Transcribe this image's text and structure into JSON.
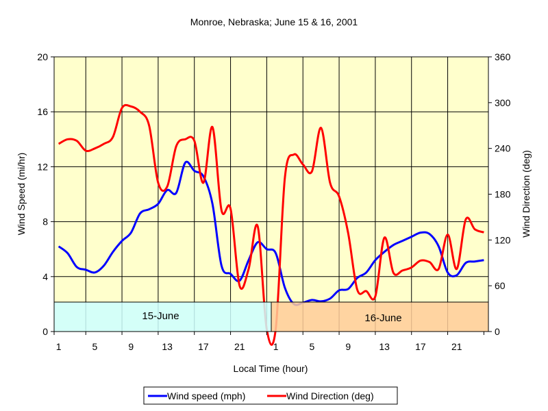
{
  "chart_data": {
    "type": "line",
    "title": "Monroe, Nebraska; June 15 & 16, 2001",
    "xlabel": "Local Time (hour)",
    "ylabel": "Wind Speed (mi/hr)",
    "y2label": "Wind Direction (deg)",
    "ylim": [
      0,
      20
    ],
    "y2lim": [
      0,
      360
    ],
    "yticks": [
      "0",
      "4",
      "8",
      "12",
      "16",
      "20"
    ],
    "y2ticks": [
      "0",
      "60",
      "120",
      "180",
      "240",
      "300",
      "360"
    ],
    "xticks": [
      "1",
      "5",
      "9",
      "13",
      "17",
      "21",
      "1",
      "5",
      "9",
      "13",
      "17",
      "21"
    ],
    "grid": true,
    "legend_position": "bottom",
    "bands": [
      {
        "label": "15-June",
        "color": "#ccffff"
      },
      {
        "label": "16-June",
        "color": "#ffcc99"
      }
    ],
    "x": [
      1,
      2,
      3,
      4,
      5,
      6,
      7,
      8,
      9,
      10,
      11,
      12,
      13,
      14,
      15,
      16,
      17,
      18,
      19,
      20,
      21,
      22,
      23,
      24,
      1,
      2,
      3,
      4,
      5,
      6,
      7,
      8,
      9,
      10,
      11,
      12,
      13,
      14,
      15,
      16,
      17,
      18,
      19,
      20,
      21,
      22,
      23,
      24
    ],
    "series": [
      {
        "name": "Wind speed (mph)",
        "axis": "left",
        "color": "#0000ff",
        "values": [
          6.2,
          5.7,
          4.7,
          4.5,
          4.3,
          4.8,
          5.8,
          6.6,
          7.2,
          8.6,
          8.9,
          9.3,
          10.3,
          10.1,
          12.3,
          11.7,
          11.3,
          9.3,
          4.8,
          4.2,
          3.7,
          5.2,
          6.5,
          6.0,
          5.7,
          3.2,
          2.0,
          2.1,
          2.3,
          2.2,
          2.4,
          3.0,
          3.1,
          3.9,
          4.3,
          5.2,
          5.8,
          6.3,
          6.6,
          6.9,
          7.2,
          7.1,
          6.2,
          4.3,
          4.1,
          5.0,
          5.1,
          5.2
        ]
      },
      {
        "name": "Wind Direction (deg)",
        "axis": "right",
        "color": "#ff0000",
        "values": [
          246,
          252,
          250,
          237,
          240,
          246,
          255,
          293,
          295,
          288,
          270,
          195,
          190,
          243,
          252,
          250,
          195,
          268,
          159,
          161,
          60,
          82,
          138,
          3,
          4,
          201,
          232,
          219,
          210,
          267,
          195,
          177,
          129,
          55,
          53,
          46,
          123,
          77,
          80,
          84,
          93,
          91,
          82,
          127,
          82,
          147,
          134,
          130
        ]
      }
    ]
  }
}
